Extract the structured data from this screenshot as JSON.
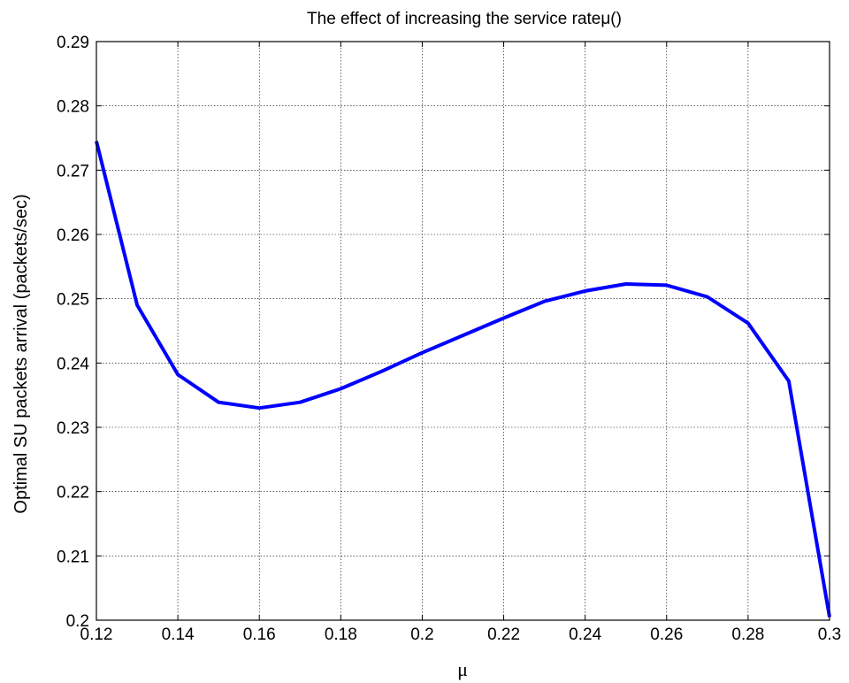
{
  "chart_data": {
    "type": "line",
    "title": "The effect of increasing the service rateμ()",
    "xlabel": "μ",
    "ylabel": "Optimal SU packets arrival (packets/sec)",
    "xlim": [
      0.12,
      0.3
    ],
    "ylim": [
      0.2,
      0.29
    ],
    "xticks": [
      "0.12",
      "0.14",
      "0.16",
      "0.18",
      "0.2",
      "0.22",
      "0.24",
      "0.26",
      "0.28",
      "0.3"
    ],
    "xtick_values": [
      0.12,
      0.14,
      0.16,
      0.18,
      0.2,
      0.22,
      0.24,
      0.26,
      0.28,
      0.3
    ],
    "yticks": [
      "0.2",
      "0.21",
      "0.22",
      "0.23",
      "0.24",
      "0.25",
      "0.26",
      "0.27",
      "0.28",
      "0.29"
    ],
    "ytick_values": [
      0.2,
      0.21,
      0.22,
      0.23,
      0.24,
      0.25,
      0.26,
      0.27,
      0.28,
      0.29
    ],
    "grid": true,
    "line_color": "#0000ff",
    "series": [
      {
        "x": [
          0.12,
          0.13,
          0.14,
          0.15,
          0.16,
          0.17,
          0.18,
          0.19,
          0.2,
          0.21,
          0.22,
          0.23,
          0.24,
          0.25,
          0.26,
          0.27,
          0.28,
          0.29,
          0.3
        ],
        "y": [
          0.2745,
          0.249,
          0.2382,
          0.2339,
          0.233,
          0.2339,
          0.236,
          0.2387,
          0.2416,
          0.2443,
          0.247,
          0.2496,
          0.2512,
          0.2523,
          0.2521,
          0.2503,
          0.2462,
          0.2372,
          0.2005
        ]
      }
    ]
  }
}
